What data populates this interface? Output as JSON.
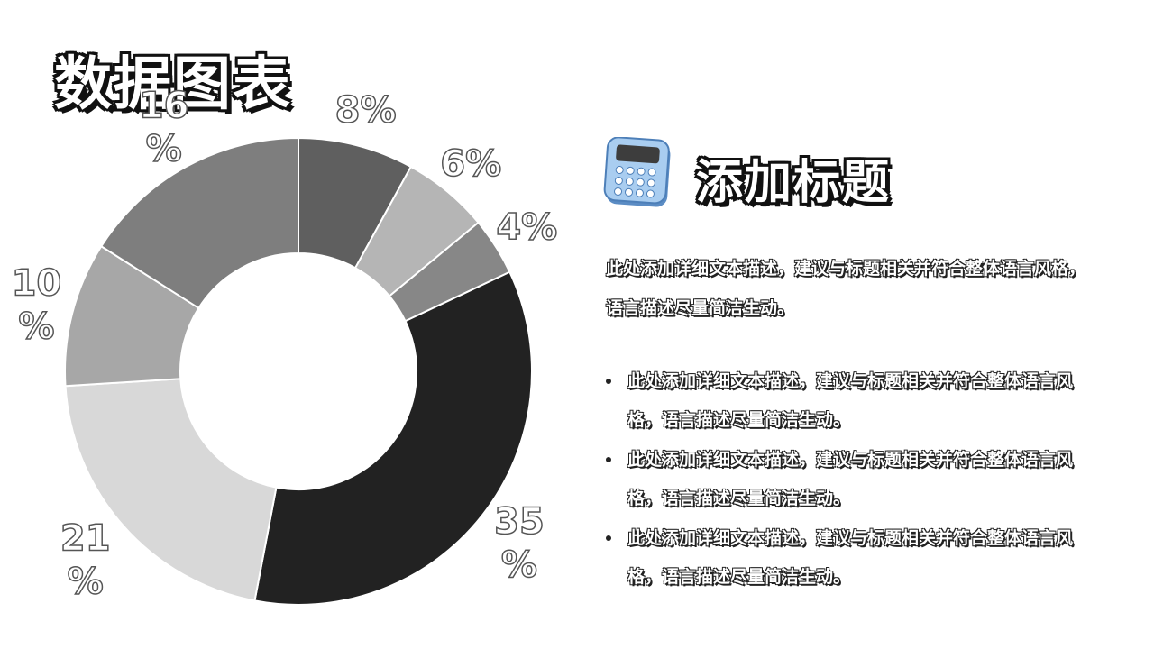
{
  "page": {
    "title": "数据图表"
  },
  "chart_data": {
    "type": "pie",
    "style": "donut",
    "categories": [
      "",
      "",
      "",
      "",
      "",
      "",
      ""
    ],
    "values": [
      8,
      6,
      4,
      35,
      21,
      10,
      16
    ],
    "labels": [
      "8%",
      "6%",
      "4%",
      "35\n%",
      "21\n%",
      "10\n%",
      "16\n%"
    ],
    "colors": [
      "#5f5f5f",
      "#b5b5b5",
      "#878787",
      "#222222",
      "#d8d8d8",
      "#a7a7a7",
      "#7e7e7e"
    ],
    "start_angle_deg": 0,
    "direction": "clockwise"
  },
  "section": {
    "icon": "calculator-icon",
    "title": "添加标题",
    "intro": "此处添加详细文本描述，建议与标题相关并符合整体语言风格，语言描述尽量简洁生动。",
    "bullets": [
      "此处添加详细文本描述，建议与标题相关并符合整体语言风格，语言描述尽量简洁生动。",
      "此处添加详细文本描述，建议与标题相关并符合整体语言风格，语言描述尽量简洁生动。",
      "此处添加详细文本描述，建议与标题相关并符合整体语言风格，语言描述尽量简洁生动。"
    ]
  }
}
